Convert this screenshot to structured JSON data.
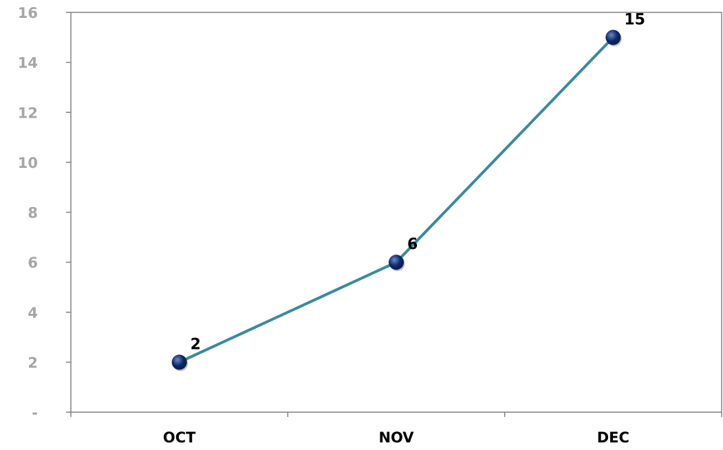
{
  "chart_data": {
    "type": "line",
    "title": "",
    "xlabel": "",
    "ylabel": "",
    "categories": [
      "OCT",
      "NOV",
      "DEC"
    ],
    "series": [
      {
        "values": [
          2,
          6,
          15
        ]
      }
    ],
    "data_labels": [
      "2",
      "6",
      "15"
    ],
    "ylim": [
      0,
      16
    ],
    "yticks": [
      0,
      2,
      4,
      6,
      8,
      10,
      12,
      14,
      16
    ],
    "ytick_labels": [
      "-",
      "2",
      "4",
      "6",
      "8",
      "10",
      "12",
      "14",
      "16"
    ],
    "grid": false,
    "legend": "none",
    "colors": {
      "line": "#3a8a9c",
      "marker": "#0d2a6b",
      "marker_highlight": "#6f86c4",
      "axis": "#808080",
      "ytick_text": "#a6a6a6",
      "xtick_text": "#000000"
    }
  }
}
